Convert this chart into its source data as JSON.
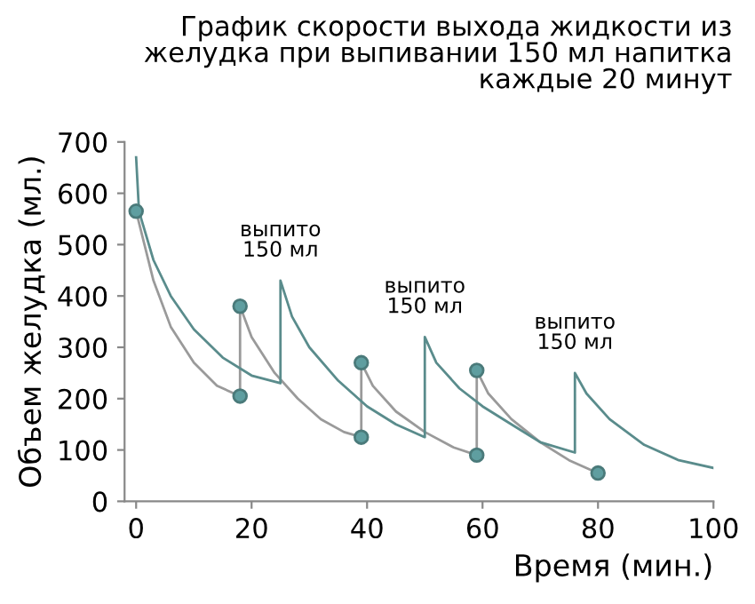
{
  "chart_data": {
    "type": "line",
    "title": "График скорости выхода жидкости из\nжелудка при выпивании 150 мл напитка\nкаждые 20 минут",
    "xlabel": "Время (мин.)",
    "ylabel": "Объем желудка (мл.)",
    "series": [
      {
        "color": "#9a9a9a",
        "x": [
          0,
          3,
          6,
          10,
          14,
          18,
          18,
          20,
          24,
          28,
          32,
          36,
          39,
          39,
          41,
          45,
          50,
          55,
          59,
          59,
          61,
          65,
          70,
          75,
          80
        ],
        "values": [
          565,
          430,
          340,
          270,
          225,
          205,
          380,
          320,
          250,
          200,
          160,
          135,
          125,
          270,
          225,
          175,
          135,
          105,
          90,
          255,
          210,
          160,
          115,
          80,
          55
        ]
      },
      {
        "color": "#5a8c8c",
        "x": [
          0,
          0.5,
          3,
          6,
          10,
          15,
          20,
          25,
          25,
          27,
          30,
          35,
          40,
          45,
          50,
          50,
          52,
          56,
          60,
          65,
          70,
          76,
          76,
          78,
          82,
          88,
          94,
          100
        ],
        "values": [
          670,
          565,
          470,
          400,
          335,
          280,
          245,
          230,
          430,
          360,
          300,
          235,
          185,
          150,
          125,
          320,
          270,
          220,
          185,
          150,
          115,
          95,
          250,
          210,
          160,
          110,
          80,
          65
        ]
      },
      {
        "type": "scatter",
        "color": "#5f9ea0",
        "marker": "circle",
        "x": [
          0,
          18,
          18,
          39,
          39,
          59,
          59,
          80
        ],
        "values": [
          565,
          205,
          380,
          125,
          270,
          90,
          255,
          55
        ]
      }
    ],
    "xlim": [
      -2,
      100
    ],
    "xticks": [
      0,
      20,
      40,
      60,
      80,
      100
    ],
    "ylim": [
      0,
      700
    ],
    "yticks": [
      0,
      100,
      200,
      300,
      400,
      500,
      600,
      700
    ],
    "grid": false,
    "legend": false,
    "annotations": [
      {
        "text": "выпито\n150 мл",
        "x": 25,
        "y": 430
      },
      {
        "text": "выпито\n150 мл",
        "x": 50,
        "y": 320
      },
      {
        "text": "выпито\n150 мл",
        "x": 76,
        "y": 250
      }
    ]
  }
}
